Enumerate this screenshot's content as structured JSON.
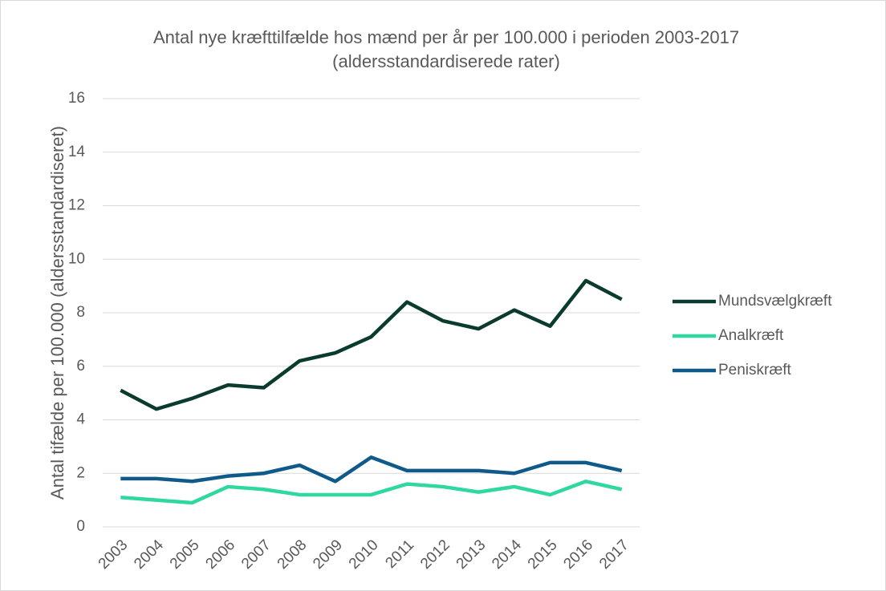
{
  "chart_data": {
    "type": "line",
    "title": "Antal nye kræfttilfælde hos mænd per år per 100.000 i perioden 2003-2017 (aldersstandardiserede rater)",
    "y_label": "Antal tifælde per 100.000 (aldersstandardiseret)",
    "categories": [
      "2003",
      "2004",
      "2005",
      "2006",
      "2007",
      "2008",
      "2009",
      "2010",
      "2011",
      "2012",
      "2013",
      "2014",
      "2015",
      "2016",
      "2017"
    ],
    "series": [
      {
        "name": "Mundsvælgkræft",
        "color": "#0b3b2e",
        "values": [
          5.1,
          4.4,
          4.8,
          5.3,
          5.2,
          6.2,
          6.5,
          7.1,
          8.4,
          7.7,
          7.4,
          8.1,
          7.5,
          9.2,
          8.5
        ]
      },
      {
        "name": "Analkræft",
        "color": "#2ed8a0",
        "values": [
          1.1,
          1.0,
          0.9,
          1.5,
          1.4,
          1.2,
          1.2,
          1.2,
          1.6,
          1.5,
          1.3,
          1.5,
          1.2,
          1.7,
          1.4
        ]
      },
      {
        "name": "Peniskræft",
        "color": "#0f5a8a",
        "values": [
          1.8,
          1.8,
          1.7,
          1.9,
          2.0,
          2.3,
          1.7,
          2.6,
          2.1,
          2.1,
          2.1,
          2.0,
          2.4,
          2.4,
          2.1
        ]
      }
    ],
    "ylim": [
      0,
      16
    ],
    "yticks": [
      0,
      2,
      4,
      6,
      8,
      10,
      12,
      14,
      16
    ],
    "grid": true,
    "legend": "right"
  }
}
